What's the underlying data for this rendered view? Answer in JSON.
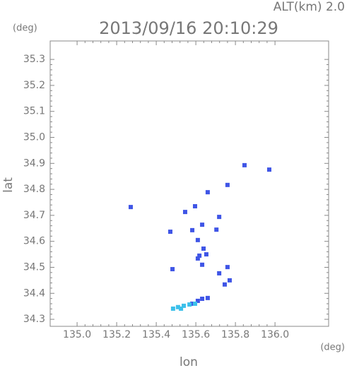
{
  "chart_data": {
    "type": "scatter",
    "title": "2013/09/16 20:10:29",
    "subtitle": "ALT(km) 2.0",
    "y_unit": "(deg)",
    "x_unit": "(deg)",
    "ylabel": "lat",
    "xlabel": "lon",
    "xlim": [
      134.864,
      136.271
    ],
    "ylim": [
      34.273,
      35.371
    ],
    "xticks": [
      {
        "value": 135,
        "label": "135.0"
      },
      135.2,
      135.4,
      135.6,
      135.8,
      {
        "value": 136,
        "label": "136.0"
      }
    ],
    "yticks": [
      34.3,
      34.4,
      34.5,
      34.6,
      34.7,
      34.8,
      34.9,
      {
        "value": 35,
        "label": "35.0"
      },
      35.1,
      35.2,
      35.3
    ],
    "series": [
      {
        "color": "#3f55e6",
        "x": [
          135.271,
          135.846,
          135.971,
          135.66,
          135.76,
          135.596,
          135.546,
          135.482,
          135.471,
          135.718,
          135.704,
          135.632,
          135.582,
          135.61,
          135.639,
          135.618,
          135.653,
          135.632,
          135.61,
          135.718,
          135.76,
          135.771,
          135.746,
          135.632,
          135.66,
          135.61,
          135.582
        ],
        "values": [
          34.732,
          34.893,
          34.876,
          34.789,
          34.817,
          34.735,
          34.713,
          34.493,
          34.637,
          34.694,
          34.645,
          34.664,
          34.643,
          34.605,
          34.572,
          34.545,
          34.55,
          34.51,
          34.534,
          34.477,
          34.501,
          34.45,
          34.434,
          34.379,
          34.382,
          34.371,
          34.36
        ]
      },
      {
        "color": "#3cc0ea",
        "x": [
          135.485,
          135.51,
          135.539,
          135.568,
          135.596,
          135.525
        ],
        "values": [
          34.341,
          34.347,
          34.352,
          34.357,
          34.36,
          34.341
        ]
      }
    ]
  }
}
